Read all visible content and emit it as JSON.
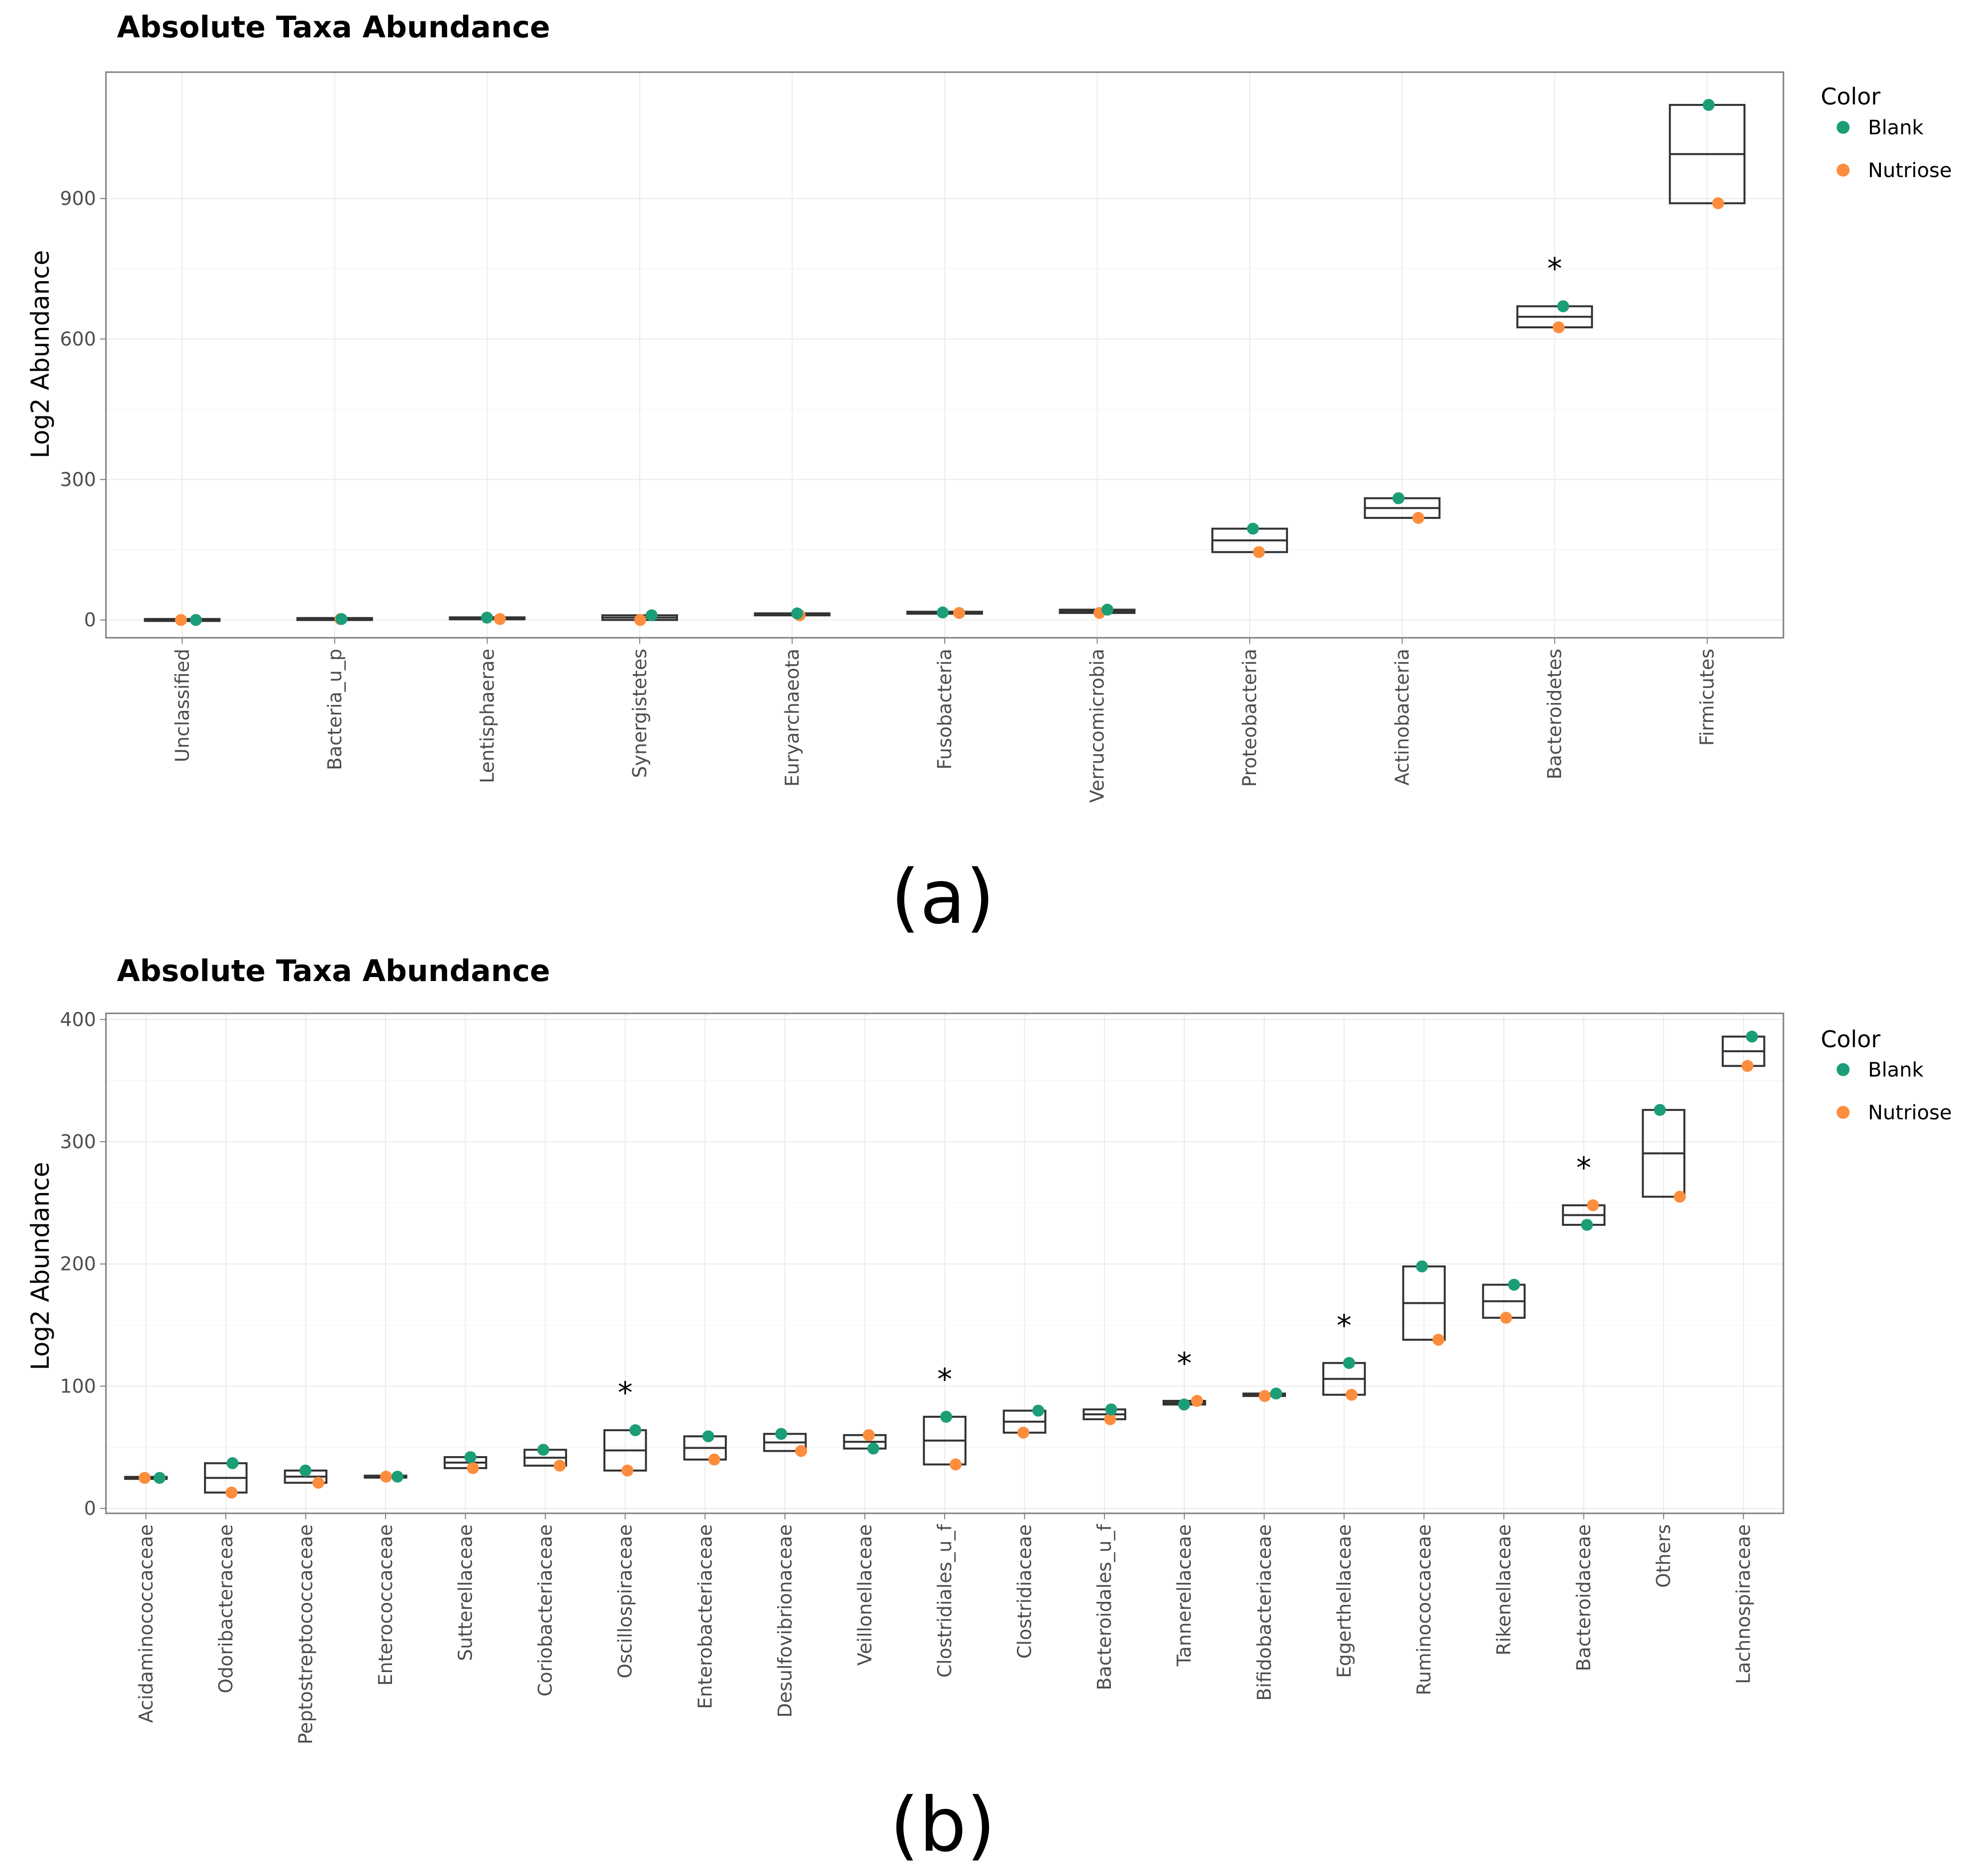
{
  "colors": {
    "blank": "#1b9e77",
    "nutriose": "#fc8d3c",
    "box": "#333333",
    "grid": "#ebebeb",
    "frame": "#7f7f7f"
  },
  "chart_data": [
    {
      "type": "box",
      "panel_label": "(a)",
      "title": "Absolute Taxa Abundance",
      "xlabel": "",
      "ylabel": "Log2 Abundance",
      "ylim": [
        -38,
        1170
      ],
      "yticks": [
        0,
        300,
        600,
        900
      ],
      "legend": {
        "title": "Color",
        "position": "right",
        "entries": [
          "Blank",
          "Nutriose"
        ]
      },
      "categories": [
        "Unclassified",
        "Bacteria_u_p",
        "Lentisphaerae",
        "Synergistetes",
        "Euryarchaeota",
        "Fusobacteria",
        "Verrucomicrobia",
        "Proteobacteria",
        "Actinobacteria",
        "Bacteroidetes",
        "Firmicutes"
      ],
      "series": [
        {
          "name": "Blank",
          "values": [
            0,
            2,
            5,
            10,
            14,
            16,
            22,
            195,
            260,
            670,
            1100
          ]
        },
        {
          "name": "Nutriose",
          "values": [
            0,
            2,
            2,
            0,
            10,
            15,
            15,
            145,
            218,
            625,
            890
          ]
        }
      ],
      "significant": [
        "Bacteroidetes"
      ],
      "significance_marker": "*"
    },
    {
      "type": "box",
      "panel_label": "(b)",
      "title": "Absolute Taxa Abundance",
      "xlabel": "",
      "ylabel": "Log2 Abundance",
      "ylim": [
        -4,
        405
      ],
      "yticks": [
        0,
        100,
        200,
        300,
        400
      ],
      "legend": {
        "title": "Color",
        "position": "right",
        "entries": [
          "Blank",
          "Nutriose"
        ]
      },
      "categories": [
        "Acidaminococcaceae",
        "Odoribacteraceae",
        "Peptostreptococcaceae",
        "Enterococcaceae",
        "Sutterellaceae",
        "Coriobacteriaceae",
        "Oscillospiraceae",
        "Enterobacteriaceae",
        "Desulfovibrionaceae",
        "Veillonellaceae",
        "Clostridiales_u_f",
        "Clostridiaceae",
        "Bacteroidales_u_f",
        "Tannerellaceae",
        "Bifidobacteriaceae",
        "Eggerthellaceae",
        "Ruminococcaceae",
        "Rikenellaceae",
        "Bacteroidaceae",
        "Others",
        "Lachnospiraceae"
      ],
      "series": [
        {
          "name": "Blank",
          "values": [
            25,
            37,
            31,
            26,
            42,
            48,
            64,
            59,
            61,
            49,
            75,
            80,
            81,
            85,
            94,
            119,
            198,
            183,
            232,
            326,
            386
          ]
        },
        {
          "name": "Nutriose",
          "values": [
            25,
            13,
            21,
            26,
            33,
            35,
            31,
            40,
            47,
            60,
            36,
            62,
            73,
            88,
            92,
            93,
            138,
            156,
            248,
            255,
            362
          ]
        }
      ],
      "significant": [
        "Oscillospiraceae",
        "Clostridiales_u_f",
        "Tannerellaceae",
        "Eggerthellaceae",
        "Bacteroidaceae"
      ],
      "significance_marker": "*"
    }
  ]
}
